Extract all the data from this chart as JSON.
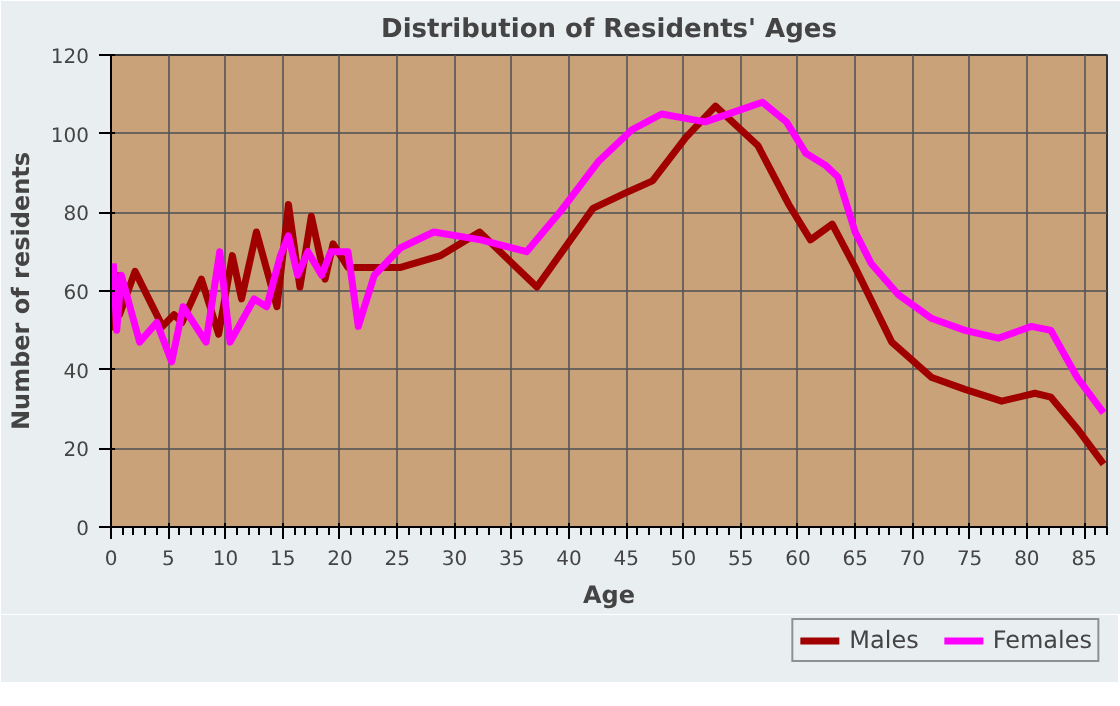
{
  "chart_data": {
    "type": "line",
    "title": "Distribution of Residents' Ages",
    "xlabel": "Age",
    "ylabel": "Number of residents",
    "xlim": [
      0,
      87
    ],
    "ylim": [
      0,
      120
    ],
    "xticks": [
      0,
      5,
      10,
      15,
      20,
      25,
      30,
      35,
      40,
      45,
      50,
      55,
      60,
      65,
      70,
      75,
      80,
      85
    ],
    "yticks": [
      0,
      20,
      40,
      60,
      80,
      100,
      120
    ],
    "grid": true,
    "legend": "bottom right",
    "marker": "none",
    "line_style": "solid",
    "series": [
      {
        "name": "Males",
        "color": "#a00000",
        "x": [
          0.2,
          0.5,
          0.75,
          2.1,
          4.5,
          5.5,
          6.2,
          7.9,
          9.4,
          10.6,
          11.4,
          12.7,
          14.5,
          15.5,
          16.5,
          17.5,
          18.7,
          19.4,
          20.7,
          23,
          25.3,
          28.8,
          32.2,
          37.2,
          42.1,
          45,
          47.3,
          50.2,
          52.8,
          56.5,
          59.2,
          61.1,
          63,
          65,
          68.2,
          71.7,
          74.6,
          77.8,
          80.7,
          82.1,
          84.4,
          86.7
        ],
        "values": [
          50,
          64,
          54,
          65,
          51,
          54,
          52,
          63,
          49,
          69,
          58,
          75,
          56,
          82,
          61,
          79,
          63,
          72,
          66,
          66,
          66,
          69,
          75,
          61,
          81,
          85,
          88,
          99,
          107,
          97,
          82,
          73,
          77,
          66,
          47,
          38,
          35,
          32,
          34,
          33,
          25,
          16
        ]
      },
      {
        "name": "Females",
        "color": "#ff00ff",
        "x": [
          0.2,
          0.5,
          0.9,
          2.5,
          4,
          5.3,
          6.3,
          8.3,
          9.5,
          10.4,
          12.5,
          13.6,
          14.8,
          15.5,
          16.3,
          17.2,
          18.4,
          19.2,
          20.7,
          21.6,
          23,
          25.3,
          28.2,
          32.3,
          36.3,
          39.2,
          42.6,
          45.5,
          48.1,
          51.9,
          54.9,
          56.9,
          59,
          60.7,
          62.4,
          63.5,
          65,
          66.4,
          68.8,
          71.7,
          74.6,
          77.5,
          80.4,
          82.1,
          84.4,
          86.7
        ],
        "values": [
          67,
          50,
          64,
          47,
          52,
          42,
          56,
          47,
          70,
          47,
          58,
          56,
          69,
          74,
          64,
          70,
          64,
          70,
          70,
          51,
          64,
          71,
          75,
          73,
          70,
          80,
          93,
          101,
          105,
          103,
          106,
          108,
          103,
          95,
          92,
          89,
          75,
          67,
          59,
          53,
          50,
          48,
          51,
          50,
          38,
          29
        ]
      }
    ]
  }
}
